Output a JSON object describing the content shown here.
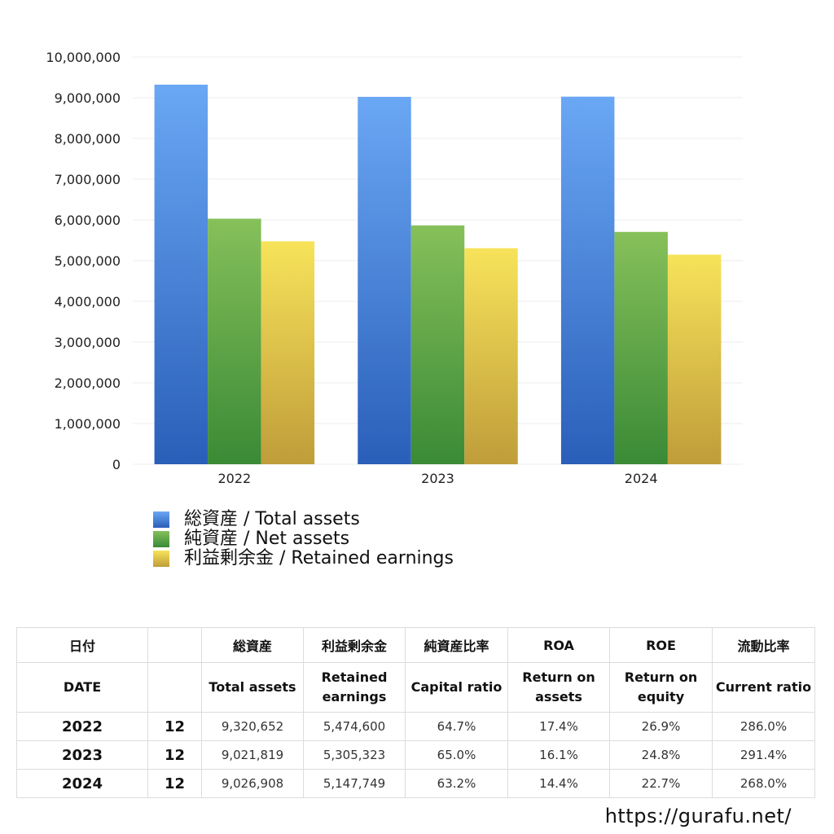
{
  "chart_data": {
    "type": "bar",
    "categories": [
      "2022",
      "2023",
      "2024"
    ],
    "series": [
      {
        "name": "総資産 / Total assets",
        "values": [
          9320652,
          9021819,
          9026908
        ]
      },
      {
        "name": "純資産 / Net assets",
        "values": [
          6030000,
          5865000,
          5705000
        ]
      },
      {
        "name": "利益剰余金 / Retained earnings",
        "values": [
          5474600,
          5305323,
          5147749
        ]
      }
    ],
    "ylim": [
      0,
      10000000
    ],
    "yticks": [
      "0",
      "1,000,000",
      "2,000,000",
      "3,000,000",
      "4,000,000",
      "5,000,000",
      "6,000,000",
      "7,000,000",
      "8,000,000",
      "9,000,000",
      "10,000,000"
    ],
    "grid": true,
    "legend_position": "bottom-left",
    "colors": [
      {
        "top": "#6aa7f4",
        "bottom": "#2a5fb9"
      },
      {
        "top": "#86c05a",
        "bottom": "#3a8a36"
      },
      {
        "top": "#f7e35a",
        "bottom": "#bf9d3a"
      }
    ]
  },
  "table": {
    "headers_jp": [
      "日付",
      "総資産",
      "利益剰余金",
      "純資産比率",
      "ROA",
      "ROE",
      "流動比率"
    ],
    "headers_en": [
      "DATE",
      "Total assets",
      "Retained earnings",
      "Capital ratio",
      "Return on assets",
      "Return on equity",
      "Current ratio"
    ],
    "rows": [
      {
        "year": "2022",
        "month": "12",
        "total_assets": "9,320,652",
        "retained_earnings": "5,474,600",
        "capital_ratio": "64.7%",
        "roa": "17.4%",
        "roe": "26.9%",
        "current_ratio": "286.0%"
      },
      {
        "year": "2023",
        "month": "12",
        "total_assets": "9,021,819",
        "retained_earnings": "5,305,323",
        "capital_ratio": "65.0%",
        "roa": "16.1%",
        "roe": "24.8%",
        "current_ratio": "291.4%"
      },
      {
        "year": "2024",
        "month": "12",
        "total_assets": "9,026,908",
        "retained_earnings": "5,147,749",
        "capital_ratio": "63.2%",
        "roa": "14.4%",
        "roe": "22.7%",
        "current_ratio": "268.0%"
      }
    ]
  },
  "footer": {
    "url": "https://gurafu.net/"
  }
}
